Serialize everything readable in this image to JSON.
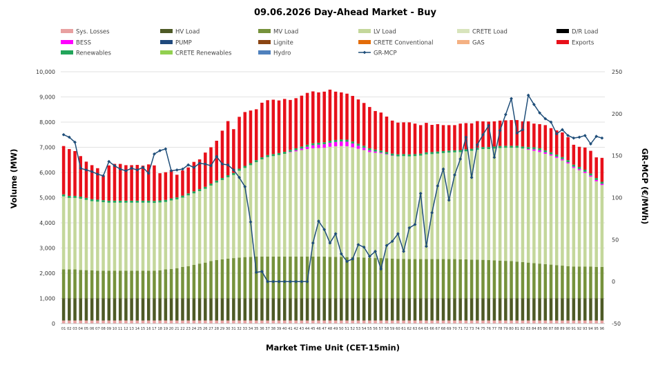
{
  "chart_data": {
    "type": "bar",
    "title": "09.06.2026  Day-Ahead Market - Buy",
    "xlabel": "Market Time Unit (CET-15min)",
    "ylabel": "Volume (MW)",
    "y2label": "GR-MCP (€/MWh)",
    "ylim": [
      0,
      10000
    ],
    "y2lim": [
      -50,
      250
    ],
    "yticks": [
      "0",
      "1,000",
      "2,000",
      "3,000",
      "4,000",
      "5,000",
      "6,000",
      "7,000",
      "8,000",
      "9,000",
      "10,000"
    ],
    "y2ticks": [
      "-50",
      "0",
      "50",
      "100",
      "150",
      "200",
      "250"
    ],
    "categories": [
      "01",
      "02",
      "03",
      "04",
      "05",
      "06",
      "07",
      "08",
      "09",
      "10",
      "11",
      "12",
      "13",
      "14",
      "15",
      "16",
      "17",
      "18",
      "19",
      "20",
      "21",
      "22",
      "23",
      "24",
      "25",
      "26",
      "27",
      "28",
      "29",
      "30",
      "31",
      "32",
      "33",
      "34",
      "35",
      "36",
      "37",
      "38",
      "39",
      "40",
      "41",
      "42",
      "43",
      "44",
      "45",
      "46",
      "47",
      "48",
      "49",
      "50",
      "51",
      "52",
      "53",
      "54",
      "55",
      "56",
      "57",
      "58",
      "59",
      "60",
      "61",
      "62",
      "63",
      "64",
      "65",
      "66",
      "67",
      "68",
      "69",
      "70",
      "71",
      "72",
      "73",
      "74",
      "75",
      "76",
      "77",
      "78",
      "79",
      "80",
      "81",
      "82",
      "83",
      "84",
      "85",
      "86",
      "87",
      "88",
      "89",
      "90",
      "91",
      "92",
      "93",
      "94",
      "95",
      "96"
    ],
    "legend_position": "top",
    "grid": true,
    "stack_order": [
      "Sys. Losses",
      "HV Load",
      "MV Load",
      "LV Load",
      "BESS",
      "Renewables",
      "Exports"
    ],
    "series": [
      {
        "name": "Sys. Losses",
        "color": "#e8a0a0",
        "values": [
          120,
          120,
          120,
          120,
          120,
          120,
          120,
          120,
          120,
          120,
          120,
          120,
          120,
          120,
          120,
          120,
          120,
          120,
          120,
          120,
          120,
          120,
          120,
          120,
          120,
          120,
          120,
          120,
          120,
          120,
          120,
          120,
          120,
          120,
          120,
          120,
          120,
          120,
          120,
          120,
          120,
          120,
          120,
          120,
          120,
          120,
          120,
          120,
          120,
          120,
          120,
          120,
          120,
          120,
          120,
          120,
          120,
          120,
          120,
          120,
          120,
          120,
          120,
          120,
          120,
          120,
          120,
          120,
          120,
          120,
          120,
          120,
          120,
          120,
          120,
          120,
          120,
          120,
          120,
          120,
          120,
          120,
          120,
          120,
          120,
          120,
          120,
          120,
          120,
          120,
          120,
          120,
          120,
          120,
          120,
          120
        ]
      },
      {
        "name": "HV Load",
        "color": "#4e5a26",
        "values": [
          880,
          880,
          880,
          880,
          880,
          880,
          880,
          880,
          880,
          880,
          880,
          880,
          880,
          880,
          880,
          880,
          880,
          880,
          880,
          880,
          880,
          880,
          880,
          880,
          880,
          880,
          880,
          880,
          880,
          880,
          880,
          880,
          880,
          880,
          880,
          880,
          880,
          880,
          880,
          880,
          880,
          880,
          880,
          880,
          880,
          880,
          880,
          880,
          880,
          880,
          880,
          880,
          880,
          880,
          880,
          880,
          880,
          880,
          880,
          880,
          880,
          880,
          880,
          880,
          880,
          880,
          880,
          880,
          880,
          880,
          880,
          880,
          880,
          880,
          880,
          880,
          880,
          880,
          880,
          880,
          880,
          880,
          880,
          880,
          880,
          880,
          880,
          880,
          880,
          880,
          880,
          880,
          880,
          880,
          880,
          880
        ]
      },
      {
        "name": "MV Load",
        "color": "#76923c",
        "values": [
          1150,
          1150,
          1150,
          1130,
          1120,
          1110,
          1100,
          1100,
          1100,
          1100,
          1100,
          1100,
          1100,
          1100,
          1100,
          1100,
          1100,
          1110,
          1150,
          1170,
          1200,
          1250,
          1280,
          1330,
          1380,
          1420,
          1480,
          1520,
          1550,
          1580,
          1600,
          1620,
          1640,
          1650,
          1660,
          1660,
          1660,
          1660,
          1660,
          1660,
          1660,
          1660,
          1660,
          1660,
          1660,
          1660,
          1660,
          1650,
          1650,
          1650,
          1640,
          1640,
          1630,
          1620,
          1610,
          1600,
          1600,
          1590,
          1580,
          1570,
          1570,
          1560,
          1560,
          1560,
          1560,
          1560,
          1560,
          1560,
          1560,
          1560,
          1550,
          1550,
          1540,
          1540,
          1530,
          1520,
          1510,
          1500,
          1490,
          1480,
          1460,
          1440,
          1420,
          1400,
          1380,
          1360,
          1340,
          1320,
          1300,
          1280,
          1260,
          1260,
          1260,
          1260,
          1250,
          1250
        ]
      },
      {
        "name": "LV Load",
        "color": "#c4d79b",
        "values": [
          2900,
          2840,
          2840,
          2830,
          2790,
          2750,
          2740,
          2720,
          2700,
          2700,
          2700,
          2700,
          2700,
          2700,
          2700,
          2700,
          2690,
          2700,
          2680,
          2720,
          2730,
          2750,
          2810,
          2840,
          2880,
          2930,
          3000,
          3080,
          3150,
          3230,
          3300,
          3450,
          3540,
          3640,
          3750,
          3860,
          3950,
          3990,
          4030,
          4080,
          4140,
          4180,
          4230,
          4270,
          4300,
          4310,
          4320,
          4370,
          4390,
          4400,
          4400,
          4360,
          4310,
          4270,
          4200,
          4180,
          4160,
          4120,
          4080,
          4070,
          4080,
          4080,
          4090,
          4110,
          4160,
          4170,
          4190,
          4210,
          4230,
          4240,
          4260,
          4290,
          4320,
          4360,
          4400,
          4410,
          4440,
          4470,
          4490,
          4500,
          4520,
          4510,
          4480,
          4460,
          4430,
          4380,
          4330,
          4260,
          4180,
          4080,
          3920,
          3830,
          3720,
          3570,
          3400,
          3250
        ]
      },
      {
        "name": "BESS",
        "color": "#ff00ff",
        "values": [
          0,
          0,
          0,
          0,
          0,
          0,
          0,
          0,
          0,
          0,
          0,
          0,
          0,
          0,
          0,
          0,
          0,
          0,
          0,
          0,
          0,
          0,
          0,
          0,
          0,
          0,
          0,
          0,
          0,
          0,
          0,
          0,
          0,
          0,
          0,
          0,
          0,
          0,
          0,
          0,
          20,
          40,
          60,
          90,
          120,
          130,
          140,
          160,
          170,
          180,
          180,
          150,
          120,
          90,
          70,
          50,
          30,
          20,
          10,
          0,
          0,
          0,
          0,
          0,
          0,
          0,
          0,
          0,
          0,
          0,
          0,
          0,
          0,
          0,
          0,
          0,
          0,
          0,
          0,
          0,
          0,
          0,
          30,
          60,
          70,
          60,
          50,
          50,
          50,
          50,
          50,
          50,
          50,
          50,
          50,
          50
        ]
      },
      {
        "name": "Renewables",
        "color": "#22a55a",
        "values": [
          80,
          80,
          80,
          80,
          80,
          80,
          80,
          80,
          80,
          80,
          80,
          80,
          80,
          80,
          80,
          80,
          80,
          80,
          80,
          80,
          80,
          80,
          80,
          80,
          80,
          80,
          80,
          80,
          80,
          80,
          80,
          80,
          80,
          80,
          80,
          80,
          80,
          80,
          80,
          80,
          80,
          80,
          80,
          80,
          80,
          80,
          80,
          80,
          80,
          80,
          80,
          80,
          80,
          80,
          80,
          80,
          80,
          80,
          80,
          80,
          80,
          80,
          80,
          80,
          80,
          80,
          80,
          80,
          80,
          80,
          80,
          80,
          80,
          80,
          80,
          80,
          80,
          80,
          80,
          80,
          80,
          80,
          80,
          80,
          80,
          80,
          80,
          80,
          80,
          80,
          80,
          80,
          80,
          80,
          80,
          80
        ]
      },
      {
        "name": "Exports",
        "color": "#e8101a",
        "values": [
          1920,
          1860,
          1780,
          1610,
          1440,
          1350,
          1250,
          970,
          1400,
          1460,
          1460,
          1410,
          1410,
          1420,
          1390,
          1440,
          1410,
          1080,
          1100,
          1130,
          900,
          1000,
          1030,
          1170,
          1180,
          1360,
          1440,
          1580,
          1880,
          2150,
          1740,
          2060,
          2140,
          2090,
          2020,
          2170,
          2180,
          2160,
          2090,
          2100,
          1980,
          1990,
          2020,
          2060,
          2060,
          2000,
          2010,
          2030,
          1920,
          1870,
          1830,
          1810,
          1760,
          1700,
          1640,
          1530,
          1510,
          1410,
          1310,
          1260,
          1260,
          1270,
          1210,
          1130,
          1170,
          1080,
          1090,
          1030,
          1010,
          1000,
          1050,
          1040,
          1010,
          1060,
          1020,
          1010,
          1000,
          1010,
          1010,
          1020,
          1020,
          1000,
          1020,
          940,
          960,
          1000,
          960,
          960,
          980,
          910,
          790,
          800,
          880,
          900,
          820,
          950
        ]
      }
    ],
    "line_series": {
      "name": "GR-MCP",
      "color": "#1f4e79",
      "axis": "right",
      "values": [
        175,
        172,
        166,
        135,
        133,
        131,
        128,
        126,
        143,
        138,
        134,
        132,
        135,
        133,
        136,
        129,
        152,
        156,
        158,
        132,
        133,
        134,
        139,
        136,
        141,
        140,
        138,
        149,
        140,
        139,
        133,
        124,
        113,
        71,
        11,
        12,
        0,
        0,
        0,
        0,
        0,
        0,
        0,
        0,
        46,
        72,
        62,
        46,
        57,
        33,
        24,
        27,
        44,
        41,
        30,
        36,
        15,
        43,
        48,
        57,
        36,
        64,
        68,
        105,
        42,
        82,
        114,
        134,
        97,
        127,
        146,
        172,
        124,
        163,
        175,
        186,
        148,
        180,
        199,
        218,
        177,
        181,
        222,
        211,
        201,
        194,
        190,
        176,
        181,
        174,
        171,
        172,
        174,
        164,
        173,
        171
      ]
    }
  }
}
